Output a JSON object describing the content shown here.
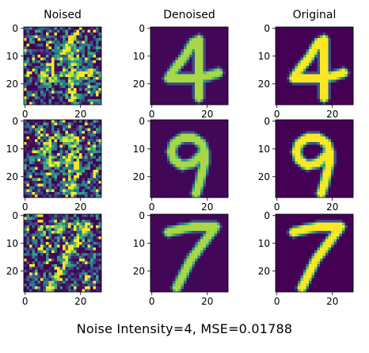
{
  "figure": {
    "caption": "Noise Intensity=4, MSE=0.01788"
  },
  "chart_data": {
    "type": "heatmap",
    "layout": "3x3 grid of image panels",
    "colormap": "viridis",
    "columns": [
      "Noised",
      "Denoised",
      "Original"
    ],
    "rows": [
      {
        "digit": "4"
      },
      {
        "digit": "9"
      },
      {
        "digit": "7"
      }
    ],
    "image_size": [
      28,
      28
    ],
    "xlim": [
      0,
      27
    ],
    "ylim": [
      27,
      0
    ],
    "x_ticks": [
      "0",
      "20"
    ],
    "y_ticks": [
      "0",
      "10",
      "20"
    ],
    "colors": {
      "low": "#440154",
      "mid": "#21918c",
      "high": "#fde725"
    },
    "noise_intensity": 4,
    "mse": 0.01788
  }
}
